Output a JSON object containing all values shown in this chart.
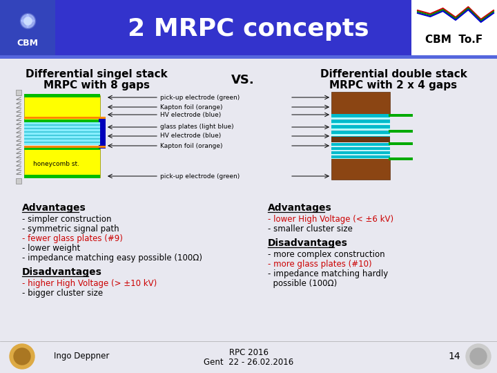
{
  "title": "2 MRPC concepts",
  "title_color": "#FFFFFF",
  "header_bg": "#3333CC",
  "slide_bg": "#E8E8F0",
  "left_title_line1": "Differential singel stack",
  "left_title_line2": "MRPC with 8 gaps",
  "right_title_line1": "Differential double stack",
  "right_title_line2": "MRPC with 2 x 4 gaps",
  "vs_text": "VS.",
  "left_adv_title": "Advantages",
  "left_adv": [
    "- simpler construction",
    "- symmetric signal path",
    "- fewer glass plates (#9)",
    "- lower weight",
    "- impedance matching easy possible (100Ω)"
  ],
  "left_adv_colors": [
    "#000000",
    "#000000",
    "#CC0000",
    "#000000",
    "#000000"
  ],
  "left_dis_title": "Disadvantages",
  "left_dis": [
    "- higher High Voltage (> ±10 kV)",
    "- bigger cluster size"
  ],
  "left_dis_colors": [
    "#CC0000",
    "#000000"
  ],
  "right_adv_title": "Advantages",
  "right_adv": [
    "- lower High Voltage (< ±6 kV)",
    "- smaller cluster size"
  ],
  "right_adv_colors": [
    "#CC0000",
    "#000000"
  ],
  "right_dis_title": "Disadvantages",
  "right_dis": [
    "- more complex construction",
    "- more glass plates (#10)",
    "- impedance matching hardly",
    "  possible (100Ω)"
  ],
  "right_dis_colors": [
    "#000000",
    "#CC0000",
    "#000000",
    "#000000"
  ],
  "footer_author": "Ingo Deppner",
  "footer_center1": "RPC 2016",
  "footer_center2": "Gent  22 - 26.02.2016",
  "footer_page": "14"
}
